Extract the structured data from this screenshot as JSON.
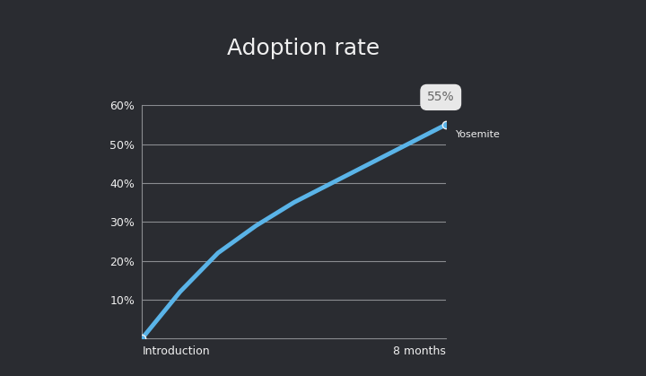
{
  "chart_data": {
    "type": "line",
    "title": "Adoption rate",
    "x": [
      0,
      1,
      2,
      3,
      4,
      5,
      6,
      7,
      8
    ],
    "series": [
      {
        "name": "Yosemite",
        "color": "#5ab4e8",
        "marker": "o",
        "line_style": "solid",
        "values": [
          0,
          12,
          22,
          29,
          35,
          40,
          45,
          50,
          55
        ],
        "value_labels": [
          null,
          null,
          null,
          null,
          null,
          null,
          null,
          null,
          "55%"
        ]
      }
    ],
    "xlim": [
      0,
      8
    ],
    "xticks": [
      {
        "value": 0,
        "label": "Introduction"
      },
      {
        "value": 8,
        "label": "8 months"
      }
    ],
    "ylim": [
      0,
      60
    ],
    "yticks": [
      {
        "value": 10,
        "label": "10%"
      },
      {
        "value": 20,
        "label": "20%"
      },
      {
        "value": 30,
        "label": "30%"
      },
      {
        "value": 40,
        "label": "40%"
      },
      {
        "value": 50,
        "label": "50%"
      },
      {
        "value": 60,
        "label": "60%"
      }
    ],
    "grid": true,
    "data_labels": true
  }
}
